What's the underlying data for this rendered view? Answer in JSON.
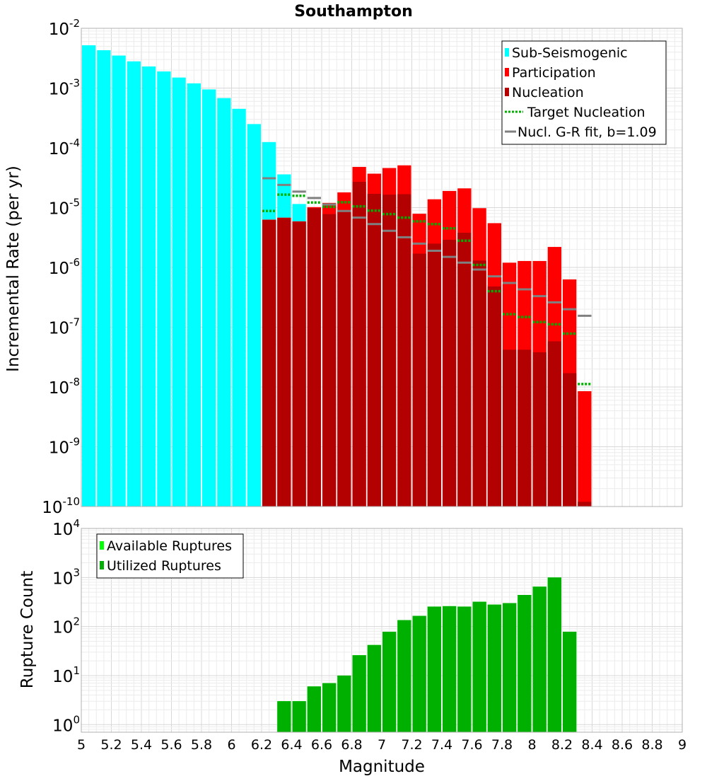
{
  "chart_data": [
    {
      "type": "bar",
      "title": "Southampton",
      "ylabel": "Incremental Rate (per yr)",
      "xlabel": "",
      "xlim": [
        5,
        9
      ],
      "ylim": [
        1e-10,
        0.01
      ],
      "y_scale": "log",
      "grid": true,
      "legend_position": "top-right",
      "y_tick_labels": [
        {
          "base": "10",
          "exp": "-10",
          "value": 1e-10
        },
        {
          "base": "10",
          "exp": "-9",
          "value": 1e-09
        },
        {
          "base": "10",
          "exp": "-8",
          "value": 1e-08
        },
        {
          "base": "10",
          "exp": "-7",
          "value": 1e-07
        },
        {
          "base": "10",
          "exp": "-6",
          "value": 1e-06
        },
        {
          "base": "10",
          "exp": "-5",
          "value": 1e-05
        },
        {
          "base": "10",
          "exp": "-4",
          "value": 0.0001
        },
        {
          "base": "10",
          "exp": "-3",
          "value": 0.001
        },
        {
          "base": "10",
          "exp": "-2",
          "value": 0.01
        }
      ],
      "legend": [
        {
          "label": "Sub-Seismogenic",
          "color": "#00ffff",
          "kind": "bar"
        },
        {
          "label": "Participation",
          "color": "#ff0000",
          "kind": "bar"
        },
        {
          "label": "Nucleation",
          "color": "#b30000",
          "kind": "bar"
        },
        {
          "label": "Target Nucleation",
          "color": "#00b000",
          "kind": "dotted"
        },
        {
          "label": "Nucl. G-R fit, b=1.09",
          "color": "#808080",
          "kind": "line"
        }
      ],
      "series": [
        {
          "name": "Sub-Seismogenic",
          "color": "#00ffff",
          "x": [
            5.05,
            5.15,
            5.25,
            5.35,
            5.45,
            5.55,
            5.65,
            5.75,
            5.85,
            5.95,
            6.05,
            6.15,
            6.25,
            6.35,
            6.45
          ],
          "values": [
            0.0052,
            0.0043,
            0.0035,
            0.0028,
            0.0023,
            0.0019,
            0.0015,
            0.0012,
            0.00095,
            0.00068,
            0.00045,
            0.00025,
            0.000125,
            3.6e-05,
            1.15e-05
          ]
        },
        {
          "name": "Participation",
          "color": "#ff0000",
          "x": [
            6.25,
            6.35,
            6.45,
            6.55,
            6.65,
            6.75,
            6.85,
            6.95,
            7.05,
            7.15,
            7.25,
            7.35,
            7.45,
            7.55,
            7.65,
            7.75,
            7.85,
            7.95,
            8.05,
            8.15,
            8.25,
            8.35
          ],
          "values": [
            6.3e-06,
            6.8e-06,
            5.9e-06,
            1.02e-05,
            1.2e-05,
            1.8e-05,
            4.8e-05,
            3.7e-05,
            4.6e-05,
            5.1e-05,
            7.9e-06,
            1.38e-05,
            1.9e-05,
            2.1e-05,
            9.8e-06,
            5.5e-06,
            1.2e-06,
            1.28e-06,
            1.28e-06,
            2.2e-06,
            6.3e-07,
            8.5e-09
          ]
        },
        {
          "name": "Nucleation",
          "color": "#b30000",
          "x": [
            6.25,
            6.35,
            6.45,
            6.55,
            6.65,
            6.75,
            6.85,
            6.95,
            7.05,
            7.15,
            7.25,
            7.35,
            7.45,
            7.55,
            7.65,
            7.75,
            7.85,
            7.95,
            8.05,
            8.15,
            8.25,
            8.35
          ],
          "values": [
            6.2e-06,
            6.7e-06,
            5.8e-06,
            9.8e-06,
            7.8e-06,
            8.7e-06,
            2.7e-05,
            1.7e-05,
            1.65e-05,
            1.68e-05,
            1.7e-06,
            2.5e-06,
            2.9e-06,
            3.8e-06,
            1.3e-06,
            4.8e-07,
            4.2e-08,
            4.2e-08,
            3.8e-08,
            5.8e-08,
            1.7e-08,
            1.2e-10
          ]
        },
        {
          "name": "Target Nucleation",
          "color": "#00b000",
          "style": "dotted",
          "x": [
            6.25,
            6.35,
            6.45,
            6.55,
            6.65,
            6.75,
            6.85,
            6.95,
            7.05,
            7.15,
            7.25,
            7.35,
            7.45,
            7.55,
            7.65,
            7.75,
            7.85,
            7.95,
            8.05,
            8.15,
            8.25,
            8.35
          ],
          "values": [
            8.8e-06,
            1.65e-05,
            1.58e-05,
            1.22e-05,
            1.03e-05,
            1.23e-05,
            1.05e-05,
            8.9e-06,
            7.8e-06,
            6.8e-06,
            5.9e-06,
            5.3e-06,
            4.5e-06,
            2.8e-06,
            1.1e-06,
            4e-07,
            1.65e-07,
            1.48e-07,
            1.22e-07,
            1.12e-07,
            7.8e-08,
            1.12e-08
          ]
        },
        {
          "name": "Nucl. G-R fit, b=1.09",
          "color": "#808080",
          "style": "segment",
          "x": [
            6.25,
            6.35,
            6.45,
            6.55,
            6.65,
            6.75,
            6.85,
            6.95,
            7.05,
            7.15,
            7.25,
            7.35,
            7.45,
            7.55,
            7.65,
            7.75,
            7.85,
            7.95,
            8.05,
            8.15,
            8.25,
            8.35
          ],
          "values": [
            3.1e-05,
            2.4e-05,
            1.85e-05,
            1.45e-05,
            1.13e-05,
            8.8e-06,
            6.8e-06,
            5.3e-06,
            4.1e-06,
            3.2e-06,
            2.5e-06,
            1.9e-06,
            1.5e-06,
            1.2e-06,
            9.2e-07,
            7.1e-07,
            5.5e-07,
            4.3e-07,
            3.3e-07,
            2.6e-07,
            2e-07,
            1.55e-07
          ]
        }
      ]
    },
    {
      "type": "bar",
      "title": "",
      "xlabel": "Magnitude",
      "ylabel": "Rupture Count",
      "xlim": [
        5,
        9
      ],
      "ylim": [
        0.7,
        10000
      ],
      "y_scale": "log",
      "grid": true,
      "legend_position": "top-left",
      "x_ticks": [
        "5",
        "5.2",
        "5.4",
        "5.6",
        "5.8",
        "6",
        "6.2",
        "6.4",
        "6.6",
        "6.8",
        "7",
        "7.2",
        "7.4",
        "7.6",
        "7.8",
        "8",
        "8.2",
        "8.4",
        "8.6",
        "8.8",
        "9"
      ],
      "y_tick_labels": [
        {
          "base": "10",
          "exp": "0",
          "value": 1
        },
        {
          "base": "10",
          "exp": "1",
          "value": 10
        },
        {
          "base": "10",
          "exp": "2",
          "value": 100
        },
        {
          "base": "10",
          "exp": "3",
          "value": 1000
        },
        {
          "base": "10",
          "exp": "4",
          "value": 10000
        }
      ],
      "legend": [
        {
          "label": "Available Ruptures",
          "color": "#00ff00",
          "kind": "bar"
        },
        {
          "label": "Utilized Ruptures",
          "color": "#00b000",
          "kind": "bar"
        }
      ],
      "series": [
        {
          "name": "Available Ruptures",
          "color": "#00ff00",
          "x": [
            6.35,
            6.45,
            6.55,
            6.65,
            6.75,
            6.85,
            6.95,
            7.05,
            7.15,
            7.25,
            7.35,
            7.45,
            7.55,
            7.65,
            7.75,
            7.85,
            7.95,
            8.05,
            8.15,
            8.25
          ],
          "values": [
            3,
            3,
            6,
            7,
            10,
            26,
            42,
            78,
            135,
            165,
            255,
            260,
            255,
            320,
            280,
            300,
            440,
            650,
            1000,
            78
          ]
        },
        {
          "name": "Utilized Ruptures",
          "color": "#00b000",
          "x": [
            6.35,
            6.45,
            6.55,
            6.65,
            6.75,
            6.85,
            6.95,
            7.05,
            7.15,
            7.25,
            7.35,
            7.45,
            7.55,
            7.65,
            7.75,
            7.85,
            7.95,
            8.05,
            8.15,
            8.25
          ],
          "values": [
            3,
            3,
            6,
            7,
            10,
            26,
            42,
            78,
            135,
            165,
            255,
            260,
            255,
            320,
            280,
            300,
            440,
            650,
            1000,
            78
          ]
        }
      ]
    }
  ]
}
